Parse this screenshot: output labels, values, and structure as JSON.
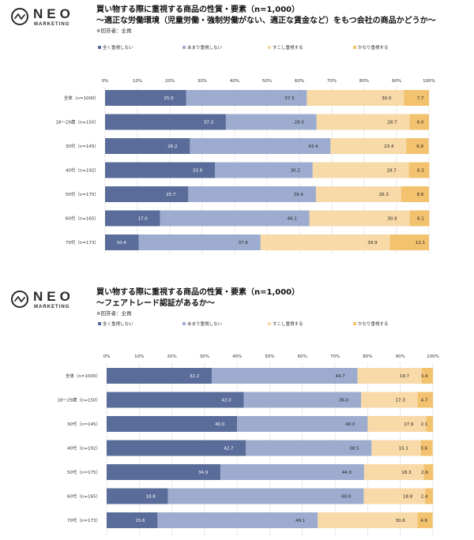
{
  "logo": {
    "name": "NEO",
    "sub": "MARKETING"
  },
  "colors": {
    "series": [
      "#5a6c99",
      "#9dacce",
      "#f8d9a8",
      "#f2c26e"
    ],
    "grid": "#dddddd",
    "text": "#222222"
  },
  "chart_data": [
    {
      "type": "bar",
      "orientation": "horizontal-stacked-100",
      "title": "買い物する際に重視する商品の性質・要素（n=1,000）",
      "subtitle": "〜適正な労働環境（児童労働・強制労働がない、適正な賃金など）をもつ会社の商品かどうか〜",
      "note": "※回答者：全員",
      "xticks": [
        "0%",
        "10%",
        "20%",
        "30%",
        "40%",
        "50%",
        "60%",
        "70%",
        "80%",
        "90%",
        "100%"
      ],
      "xlim": [
        0,
        100
      ],
      "legend_position": "top",
      "categories": [
        "全体（n=1000）",
        "18〜29歳（n=150）",
        "30代（n=145）",
        "40代（n=192）",
        "50代（n=175）",
        "60代（n=165）",
        "70代（n=173）"
      ],
      "series": [
        {
          "name": "全く重視しない",
          "values": [
            25.0,
            37.3,
            26.2,
            33.9,
            25.7,
            17.0,
            10.4
          ]
        },
        {
          "name": "あまり重視しない",
          "values": [
            37.3,
            28.0,
            43.4,
            30.2,
            39.4,
            46.1,
            37.6
          ]
        },
        {
          "name": "すこし重視する",
          "values": [
            30.0,
            28.7,
            23.4,
            29.7,
            26.3,
            30.9,
            39.9
          ]
        },
        {
          "name": "かなり重視する",
          "values": [
            7.7,
            6.0,
            6.9,
            6.3,
            8.6,
            6.1,
            12.1
          ]
        }
      ]
    },
    {
      "type": "bar",
      "orientation": "horizontal-stacked-100",
      "title": "買い物する際に重視する商品の性質・要素（n=1,000）",
      "subtitle": "〜フェアトレード認証があるか〜",
      "note": "※回答者：全員",
      "xticks": [
        "0%",
        "10%",
        "20%",
        "30%",
        "40%",
        "50%",
        "60%",
        "70%",
        "80%",
        "90%",
        "100%"
      ],
      "xlim": [
        0,
        100
      ],
      "legend_position": "top",
      "categories": [
        "全体（n=1000）",
        "18〜29歳（n=150）",
        "30代（n=145）",
        "40代（n=192）",
        "50代（n=175）",
        "60代（n=165）",
        "70代（n=173）"
      ],
      "series": [
        {
          "name": "全く重視しない",
          "values": [
            32.2,
            42.0,
            40.0,
            42.7,
            34.9,
            18.8,
            15.6
          ]
        },
        {
          "name": "あまり重視しない",
          "values": [
            44.7,
            36.0,
            40.0,
            38.5,
            44.0,
            60.0,
            49.1
          ]
        },
        {
          "name": "すこし重視する",
          "values": [
            19.7,
            17.3,
            17.9,
            15.1,
            18.3,
            18.8,
            30.6
          ]
        },
        {
          "name": "かなり重視する",
          "values": [
            3.4,
            4.7,
            2.1,
            3.6,
            2.9,
            2.4,
            4.6
          ]
        }
      ]
    }
  ]
}
